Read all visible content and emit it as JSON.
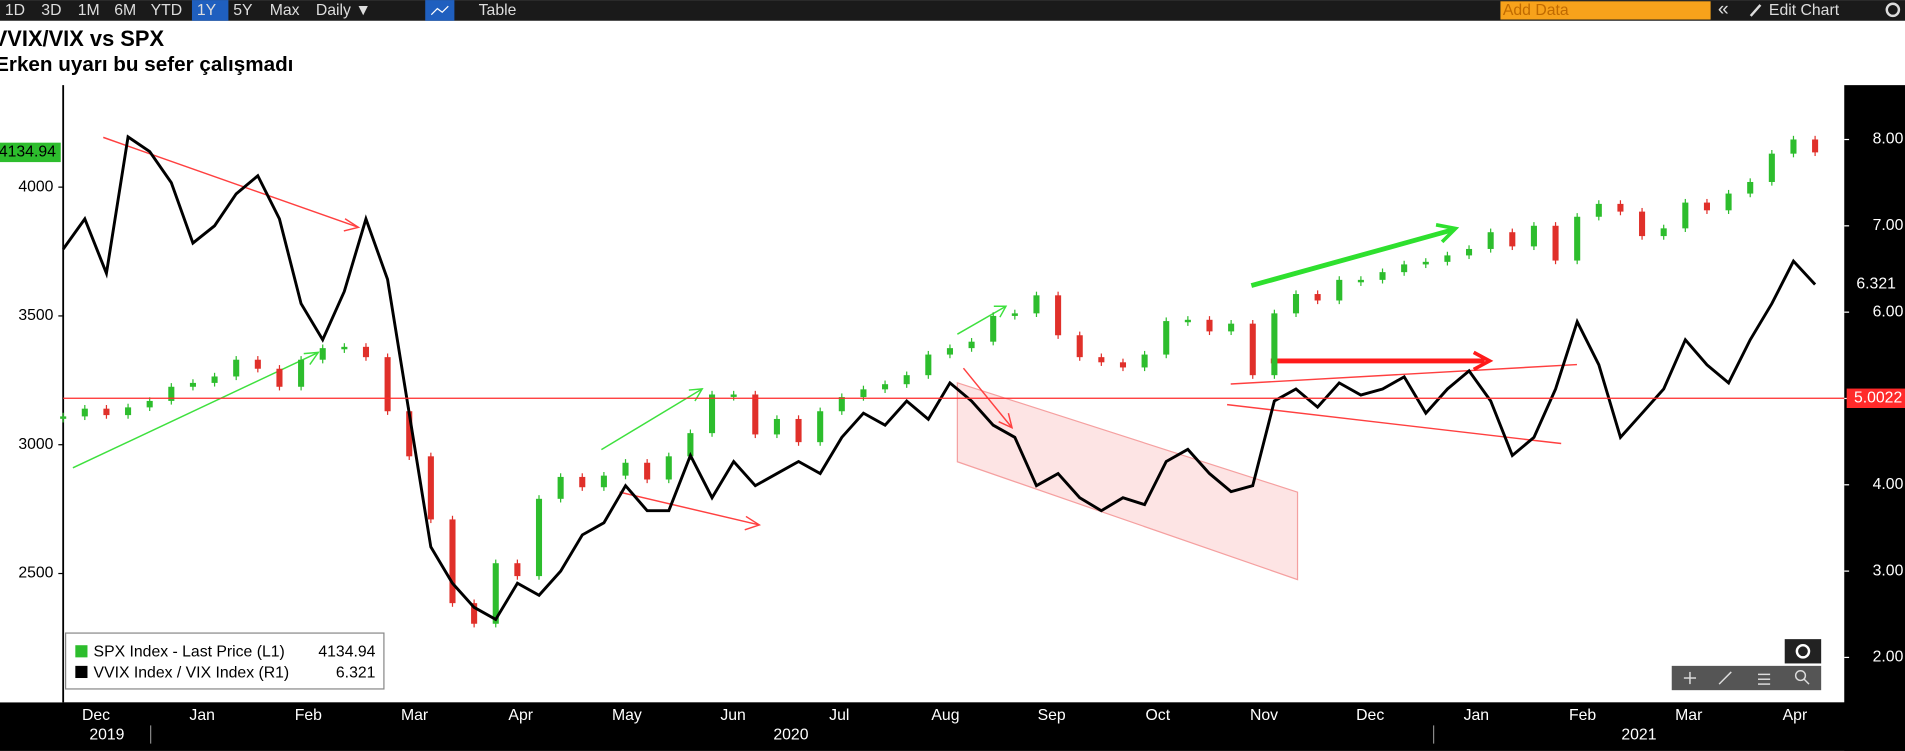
{
  "toolbar": {
    "ranges": [
      "1D",
      "3D",
      "1M",
      "6M",
      "YTD",
      "1Y",
      "5Y",
      "Max"
    ],
    "active": "1Y",
    "frequency": "Daily ▼",
    "table": "Table",
    "add_data": "Add Data",
    "back": "«",
    "edit": "Edit Chart"
  },
  "chart_data": {
    "type": "candlestick-line",
    "title": "VVIX/VIX vs SPX",
    "subtitle": "Erken uyarı bu sefer çalışmadı",
    "months": [
      "Dec",
      "Jan",
      "Feb",
      "Mar",
      "Apr",
      "May",
      "Jun",
      "Jul",
      "Aug",
      "Sep",
      "Oct",
      "Nov",
      "Dec",
      "Jan",
      "Feb",
      "Mar",
      "Apr"
    ],
    "years": [
      "2019",
      "2020",
      "2021"
    ],
    "ylim": [
      2000,
      4396
    ],
    "yticks": [
      2500,
      3000,
      3500,
      4000
    ],
    "y2lim": [
      1.48,
      8.63
    ],
    "y2ticks": [
      {
        "value": 2,
        "label": "2.00"
      },
      {
        "value": 3,
        "label": "3.00"
      },
      {
        "value": 4,
        "label": "4.00"
      },
      {
        "value": 5,
        "label": "5.00"
      },
      {
        "value": 6,
        "label": "6.00"
      },
      {
        "value": 7,
        "label": "7.00"
      },
      {
        "value": 8,
        "label": "8.00"
      }
    ],
    "reference_line": {
      "value": 5.0022,
      "label": "5.0022",
      "axis": "y2",
      "color": "#ff2a2a"
    },
    "up_color": "#2dbd2d",
    "down_color": "#e0302a",
    "series": [
      {
        "name": "SPX Index - Last Price (L1)",
        "color": "#2dbd2d",
        "axis": "y",
        "values": [
          3110,
          3140,
          3115,
          3145,
          3170,
          3225,
          3240,
          3265,
          3330,
          3295,
          3225,
          3330,
          3375,
          3380,
          3340,
          3130,
          2955,
          2710,
          2385,
          2305,
          2540,
          2490,
          2790,
          2875,
          2835,
          2880,
          2930,
          2865,
          2955,
          3045,
          3195,
          3195,
          3040,
          3100,
          3010,
          3130,
          3185,
          3215,
          3235,
          3270,
          3350,
          3375,
          3400,
          3500,
          3510,
          3580,
          3425,
          3340,
          3320,
          3300,
          3350,
          3480,
          3485,
          3440,
          3470,
          3270,
          3510,
          3585,
          3560,
          3640,
          3640,
          3670,
          3700,
          3710,
          3735,
          3760,
          3825,
          3770,
          3850,
          3715,
          3885,
          3935,
          3905,
          3810,
          3840,
          3940,
          3910,
          3975,
          4020,
          4130,
          4185,
          4134.94
        ]
      },
      {
        "name": "VVIX Index / VIX Index (R1)",
        "color": "#000000",
        "axis": "y2",
        "values": [
          6.73,
          7.08,
          6.45,
          8.03,
          7.86,
          7.5,
          6.8,
          7.0,
          7.37,
          7.58,
          7.08,
          6.1,
          5.68,
          6.24,
          7.08,
          6.38,
          4.83,
          3.28,
          2.86,
          2.58,
          2.44,
          2.86,
          2.72,
          3.0,
          3.42,
          3.56,
          3.99,
          3.7,
          3.7,
          4.34,
          3.85,
          4.27,
          3.99,
          4.13,
          4.27,
          4.13,
          4.55,
          4.83,
          4.69,
          4.97,
          4.76,
          5.18,
          4.97,
          4.69,
          4.55,
          3.99,
          4.13,
          3.85,
          3.7,
          3.85,
          3.77,
          4.27,
          4.41,
          4.13,
          3.92,
          3.99,
          4.97,
          5.11,
          4.9,
          5.18,
          5.04,
          5.11,
          5.25,
          4.83,
          5.11,
          5.32,
          4.97,
          4.34,
          4.55,
          5.11,
          5.89,
          5.39,
          4.55,
          4.83,
          5.11,
          5.68,
          5.39,
          5.18,
          5.68,
          6.1,
          6.59,
          6.321
        ]
      }
    ]
  }
}
